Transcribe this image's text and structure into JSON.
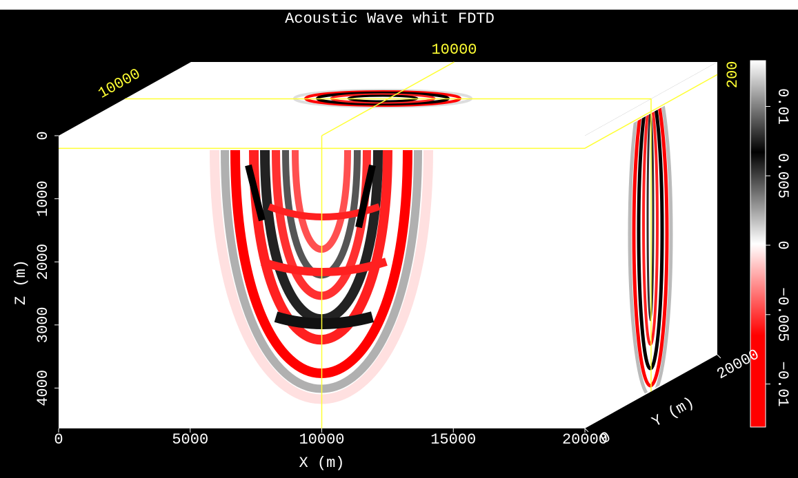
{
  "chart_data": {
    "type": "cube",
    "title": "Acoustic Wave whit FDTD",
    "xlabel": "X (m)",
    "ylabel": "Y (m)",
    "zlabel": "Z (m)",
    "xlim": [
      0,
      20000
    ],
    "xticks": [
      0,
      5000,
      10000,
      15000,
      20000
    ],
    "ylim": [
      0,
      20000
    ],
    "yticks": [
      0,
      20000
    ],
    "zlim": [
      0,
      4640
    ],
    "zticks": [
      0,
      1000,
      2000,
      3000,
      4000
    ],
    "slices": {
      "x": 10000,
      "y": 10000,
      "z": 200
    },
    "colorbar": {
      "clim": [
        -0.0131,
        0.0133
      ],
      "ticks": [
        {
          "value": -0.01,
          "label": "−0.01"
        },
        {
          "value": -0.005,
          "label": "−0.005"
        },
        0,
        0.005,
        0.01
      ]
    }
  }
}
